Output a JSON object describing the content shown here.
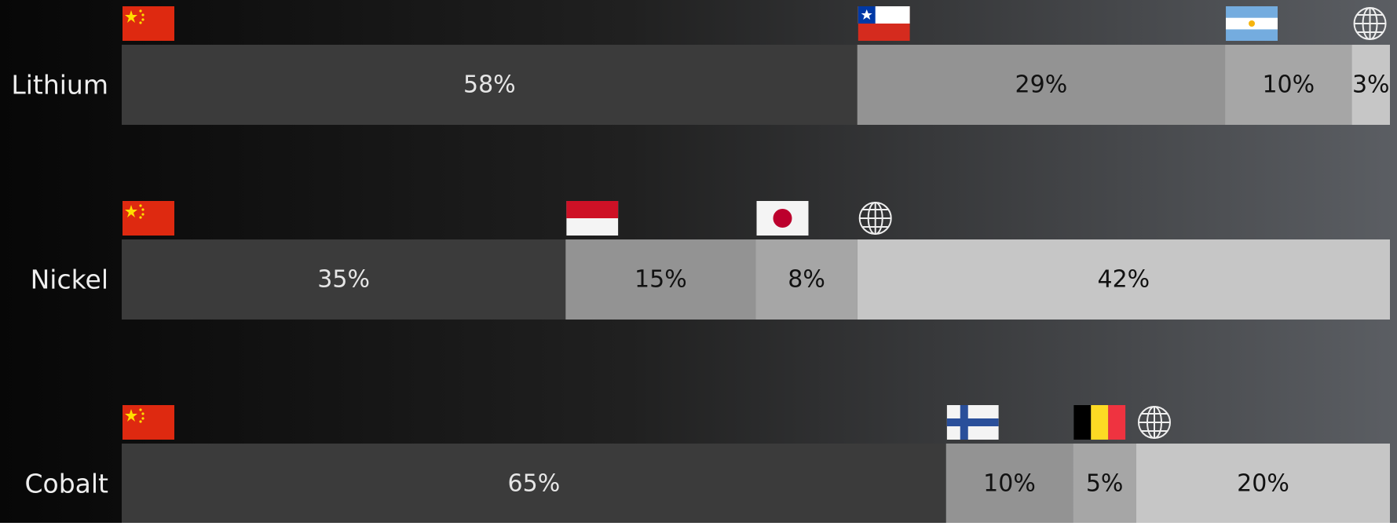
{
  "chart_data": {
    "type": "bar",
    "orientation": "horizontal",
    "stacked": true,
    "categories": [
      "Lithium",
      "Nickel",
      "Cobalt"
    ],
    "xlim": [
      0,
      100
    ],
    "series": [
      {
        "color": "#3b3b3b",
        "values": [
          58,
          35,
          65
        ],
        "value_labels": [
          "58%",
          "35%",
          "65%"
        ]
      },
      {
        "color": "#939393",
        "values": [
          29,
          15,
          10
        ],
        "value_labels": [
          "29%",
          "15%",
          "10%"
        ]
      },
      {
        "color": "#a6a6a6",
        "values": [
          10,
          8,
          5
        ],
        "value_labels": [
          "10%",
          "8%",
          "5%"
        ]
      },
      {
        "color": "#c6c6c6",
        "values": [
          3,
          42,
          20
        ],
        "value_labels": [
          "3%",
          "42%",
          "20%"
        ]
      }
    ]
  }
}
